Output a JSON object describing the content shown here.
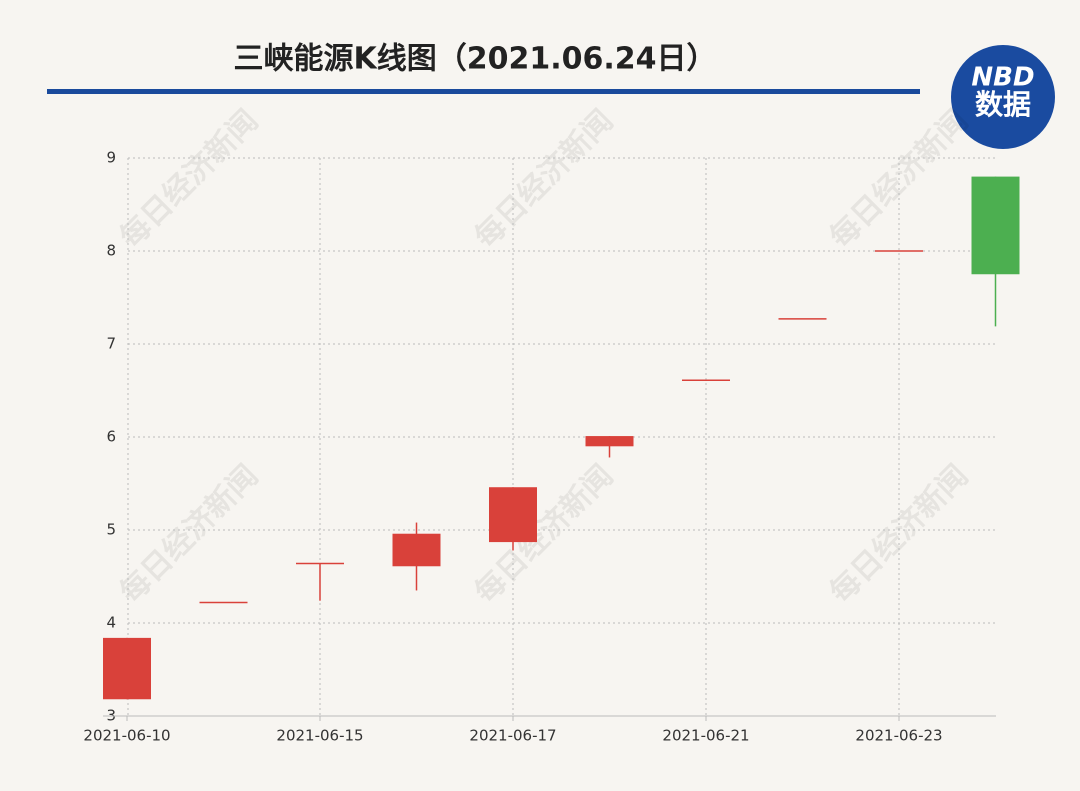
{
  "chart_data": {
    "type": "candlestick",
    "title": "三峡能源K线图（2021.06.24日）",
    "categories": [
      "2021-06-10",
      null,
      "2021-06-15",
      null,
      "2021-06-17",
      null,
      "2021-06-21",
      null,
      "2021-06-23",
      null
    ],
    "open": [
      3.18,
      4.22,
      4.64,
      4.61,
      4.87,
      5.9,
      6.61,
      7.27,
      8.0,
      8.8
    ],
    "high": [
      3.84,
      4.22,
      4.64,
      5.08,
      5.46,
      6.01,
      6.61,
      7.27,
      8.0,
      8.8
    ],
    "low": [
      3.18,
      4.22,
      4.24,
      4.35,
      4.78,
      5.78,
      6.61,
      7.27,
      8.0,
      7.19
    ],
    "close": [
      3.84,
      4.22,
      4.64,
      4.96,
      5.46,
      6.01,
      6.61,
      7.27,
      8.0,
      7.75
    ],
    "up_color": "#d9413a",
    "down_color": "#4caf50",
    "ylim": [
      3,
      9
    ],
    "yticks": [
      3,
      4,
      5,
      6,
      7,
      8,
      9
    ],
    "grid": true
  },
  "logo": {
    "line1": "NBD",
    "line2": "数据"
  },
  "watermark": "每日经济新闻"
}
